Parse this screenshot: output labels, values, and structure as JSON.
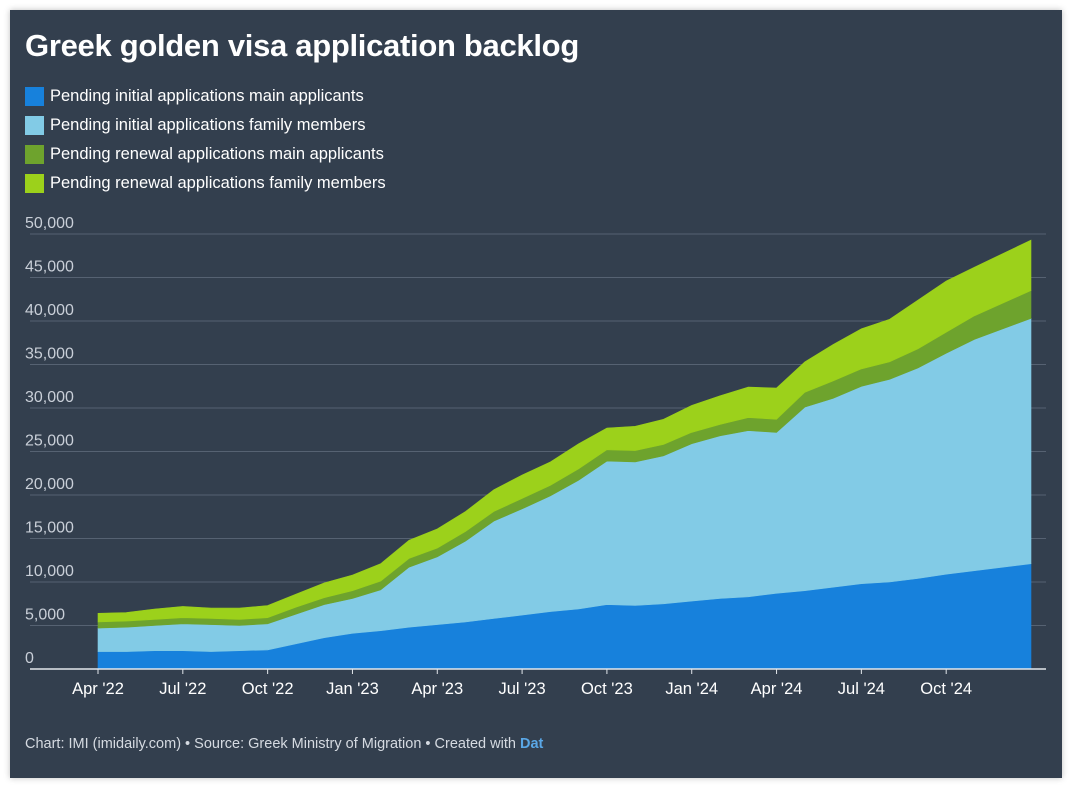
{
  "chart_data": {
    "type": "area",
    "stacked": true,
    "title": "Greek golden visa application backlog",
    "ylim": [
      0,
      50000
    ],
    "yticks": [
      0,
      5000,
      10000,
      15000,
      20000,
      25000,
      30000,
      35000,
      40000,
      45000,
      50000
    ],
    "ytick_labels": [
      "0",
      "5,000",
      "10,000",
      "15,000",
      "20,000",
      "25,000",
      "30,000",
      "35,000",
      "40,000",
      "45,000",
      "50,000"
    ],
    "x_range": [
      "2022-04",
      "2025-01"
    ],
    "xticks": [
      {
        "x": "2022-04",
        "label": "Apr '22"
      },
      {
        "x": "2022-07",
        "label": "Jul '22"
      },
      {
        "x": "2022-10",
        "label": "Oct '22"
      },
      {
        "x": "2023-01",
        "label": "Jan '23"
      },
      {
        "x": "2023-04",
        "label": "Apr '23"
      },
      {
        "x": "2023-07",
        "label": "Jul '23"
      },
      {
        "x": "2023-10",
        "label": "Oct '23"
      },
      {
        "x": "2024-01",
        "label": "Jan '24"
      },
      {
        "x": "2024-04",
        "label": "Apr '24"
      },
      {
        "x": "2024-07",
        "label": "Jul '24"
      },
      {
        "x": "2024-10",
        "label": "Oct '24"
      }
    ],
    "x": [
      "2022-04",
      "2022-05",
      "2022-06",
      "2022-07",
      "2022-08",
      "2022-09",
      "2022-10",
      "2022-11",
      "2022-12",
      "2023-01",
      "2023-02",
      "2023-03",
      "2023-04",
      "2023-05",
      "2023-06",
      "2023-07",
      "2023-08",
      "2023-09",
      "2023-10",
      "2023-11",
      "2023-12",
      "2024-01",
      "2024-02",
      "2024-03",
      "2024-04",
      "2024-05",
      "2024-06",
      "2024-07",
      "2024-08",
      "2024-09",
      "2024-10",
      "2024-11",
      "2025-01"
    ],
    "grid": true,
    "legend_position": "top-left",
    "series": [
      {
        "name": "Pending initial applications main applicants",
        "color": "#1781dc",
        "values": [
          2000,
          2000,
          2100,
          2100,
          2000,
          2100,
          2200,
          2900,
          3600,
          4100,
          4400,
          4800,
          5100,
          5400,
          5800,
          6200,
          6600,
          6900,
          7400,
          7300,
          7500,
          7800,
          8100,
          8300,
          8700,
          9000,
          9400,
          9800,
          10000,
          10400,
          10900,
          11300,
          12100
        ]
      },
      {
        "name": "Pending initial applications family members",
        "color": "#82cbe6",
        "values": [
          2700,
          2800,
          2900,
          3100,
          3100,
          2900,
          3000,
          3400,
          3800,
          4000,
          4700,
          6900,
          7800,
          9300,
          11200,
          12200,
          13300,
          14800,
          16500,
          16500,
          17000,
          18100,
          18700,
          19100,
          18500,
          21100,
          21700,
          22700,
          23300,
          24200,
          25400,
          26600,
          28200
        ]
      },
      {
        "name": "Pending renewal applications main applicants",
        "color": "#6ea32d",
        "values": [
          700,
          700,
          700,
          700,
          700,
          700,
          700,
          800,
          800,
          900,
          1000,
          1000,
          1000,
          1100,
          1100,
          1200,
          1200,
          1300,
          1300,
          1300,
          1300,
          1300,
          1300,
          1500,
          1500,
          1700,
          2000,
          2000,
          2000,
          2200,
          2400,
          2700,
          3200
        ]
      },
      {
        "name": "Pending renewal applications family members",
        "color": "#9cd11b",
        "values": [
          1000,
          1000,
          1200,
          1300,
          1200,
          1300,
          1400,
          1500,
          1700,
          1800,
          2000,
          2100,
          2200,
          2300,
          2500,
          2700,
          2700,
          2900,
          2500,
          2800,
          2900,
          3100,
          3300,
          3500,
          3600,
          3500,
          4200,
          4600,
          4900,
          5600,
          5900,
          5600,
          5800
        ]
      }
    ]
  },
  "footer": {
    "text": "Chart: IMI (imidaily.com) • Source: Greek Ministry of Migration • Created with ",
    "link": "Dat"
  }
}
